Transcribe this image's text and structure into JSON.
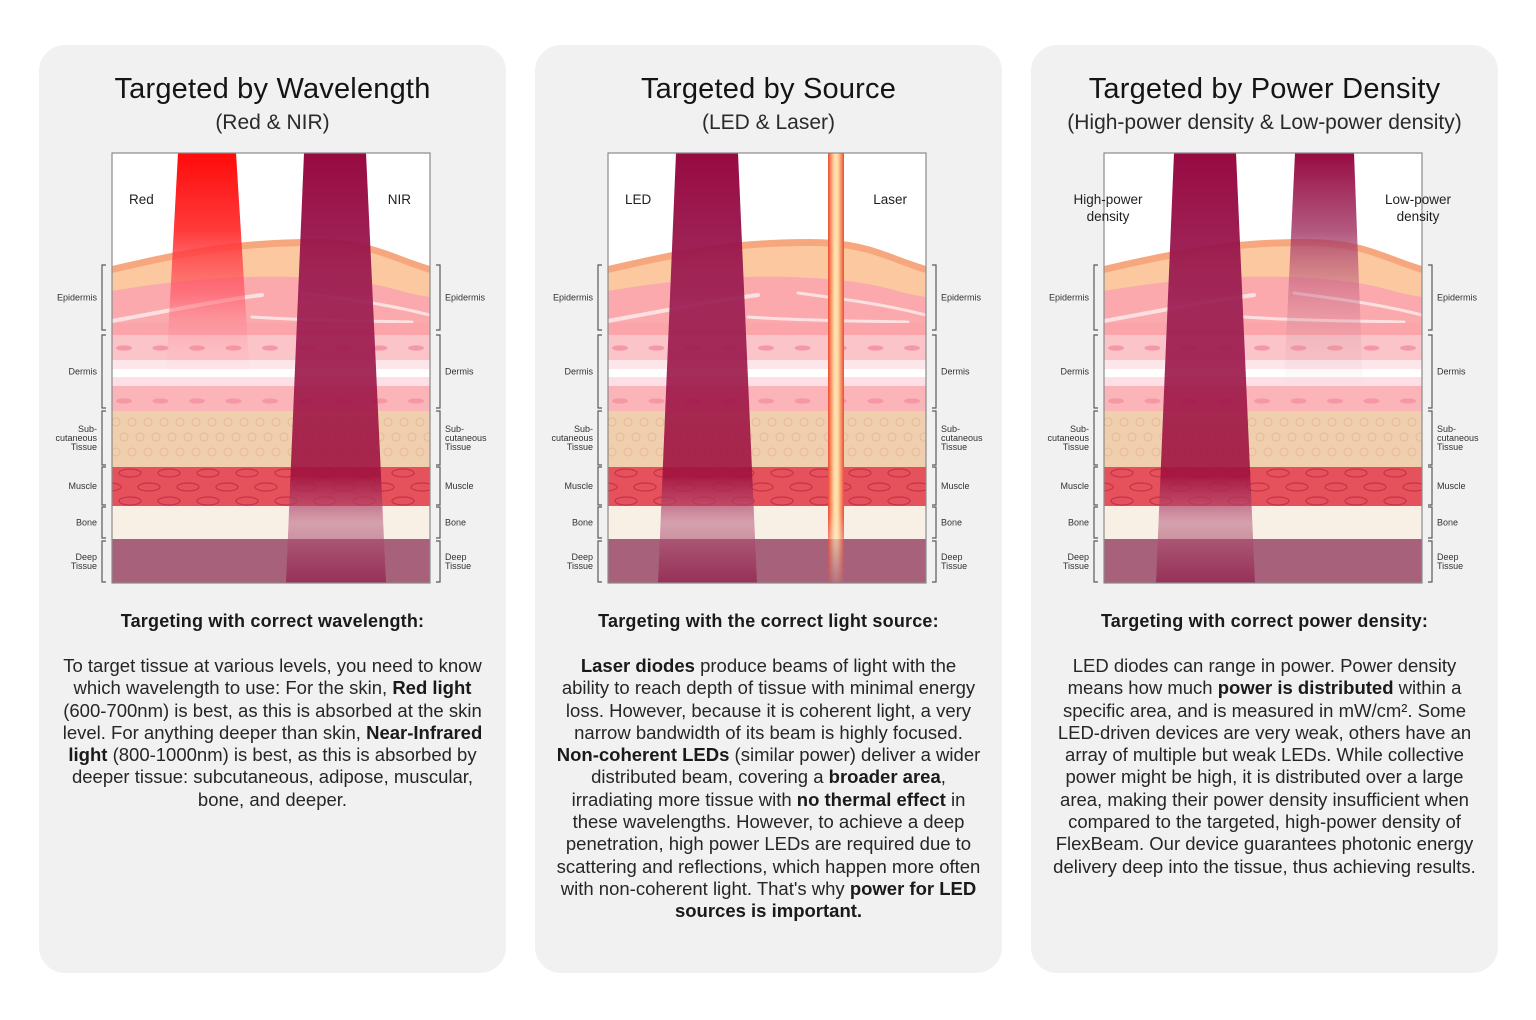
{
  "layer_labels": [
    {
      "key": "epidermis",
      "lines": [
        "Epidermis"
      ]
    },
    {
      "key": "dermis",
      "lines": [
        "Dermis"
      ]
    },
    {
      "key": "subcutaneous",
      "lines": [
        "Sub-",
        "cutaneous",
        "Tissue"
      ]
    },
    {
      "key": "muscle",
      "lines": [
        "Muscle"
      ]
    },
    {
      "key": "bone",
      "lines": [
        "Bone"
      ]
    },
    {
      "key": "deep",
      "lines": [
        "Deep",
        "Tissue"
      ]
    }
  ],
  "colors": {
    "card_bg": "#f1f1f1",
    "red_beam": "#ff1a1a",
    "nir_beam": "#960d45",
    "led_beam": "#960d45",
    "laser_beam": "#ef5a3c",
    "skin_top": "#f7a77e",
    "epidermis": "#fbc8a0",
    "dermis": "#fbb3b8",
    "subcutaneous": "#f0cfae",
    "muscle": "#e5525c",
    "bone": "#f8f0e4",
    "deep": "#a8617a"
  },
  "cards": [
    {
      "title": "Targeted by Wavelength",
      "subtitle": "(Red & NIR)",
      "beam_left_label": [
        "Red"
      ],
      "beam_right_label": [
        "NIR"
      ],
      "section_heading": "Targeting with correct wavelength:",
      "body": [
        {
          "t": "To target tissue at various levels, you need to know which wavelength to use: For the skin, "
        },
        {
          "t": "Red light",
          "b": true
        },
        {
          "t": " (600-700nm) is best, as this is absorbed at the skin level. For anything deeper than skin, "
        },
        {
          "t": "Near-Infrared light",
          "b": true
        },
        {
          "t": " (800-1000nm) is best, as this is absorbed by deeper tissue: subcutaneous, adipose, muscular, bone, and deeper."
        }
      ]
    },
    {
      "title": "Targeted by Source",
      "subtitle": "(LED & Laser)",
      "beam_left_label": [
        "LED"
      ],
      "beam_right_label": [
        "Laser"
      ],
      "section_heading": "Targeting with the correct light source:",
      "body": [
        {
          "t": "Laser diodes",
          "b": true
        },
        {
          "t": " produce beams of light with the ability to reach depth of tissue with minimal energy loss. However, because it is coherent light, a very narrow bandwidth of its beam is highly focused. "
        },
        {
          "t": "Non-coherent LEDs",
          "b": true
        },
        {
          "t": " (similar power) deliver a wider distributed beam, covering a "
        },
        {
          "t": "broader area",
          "b": true
        },
        {
          "t": ", irradiating more tissue with "
        },
        {
          "t": "no thermal effect",
          "b": true
        },
        {
          "t": " in these wavelengths. However, to achieve a deep penetration, high power LEDs are required due to scattering and reflections, which happen more often with non-coherent light. That's why "
        },
        {
          "t": "power for LED sources is important.",
          "b": true
        }
      ]
    },
    {
      "title": "Targeted by Power Density",
      "subtitle": "(High-power density & Low-power density)",
      "beam_left_label": [
        "High-power",
        "density"
      ],
      "beam_right_label": [
        "Low-power",
        "density"
      ],
      "section_heading": "Targeting with correct power density:",
      "body": [
        {
          "t": "LED diodes can range in power. Power density means how much "
        },
        {
          "t": "power is distributed",
          "b": true
        },
        {
          "t": " within a specific area, and is measured in mW/cm². Some LED-driven devices are very weak, others have an array of multiple but weak LEDs. While collective power might be high, it is distributed over a large area, making their power density insufficient when compared to the targeted, high-power density of FlexBeam. Our device guarantees photonic energy delivery deep into the tissue, thus achieving results."
        }
      ]
    }
  ]
}
